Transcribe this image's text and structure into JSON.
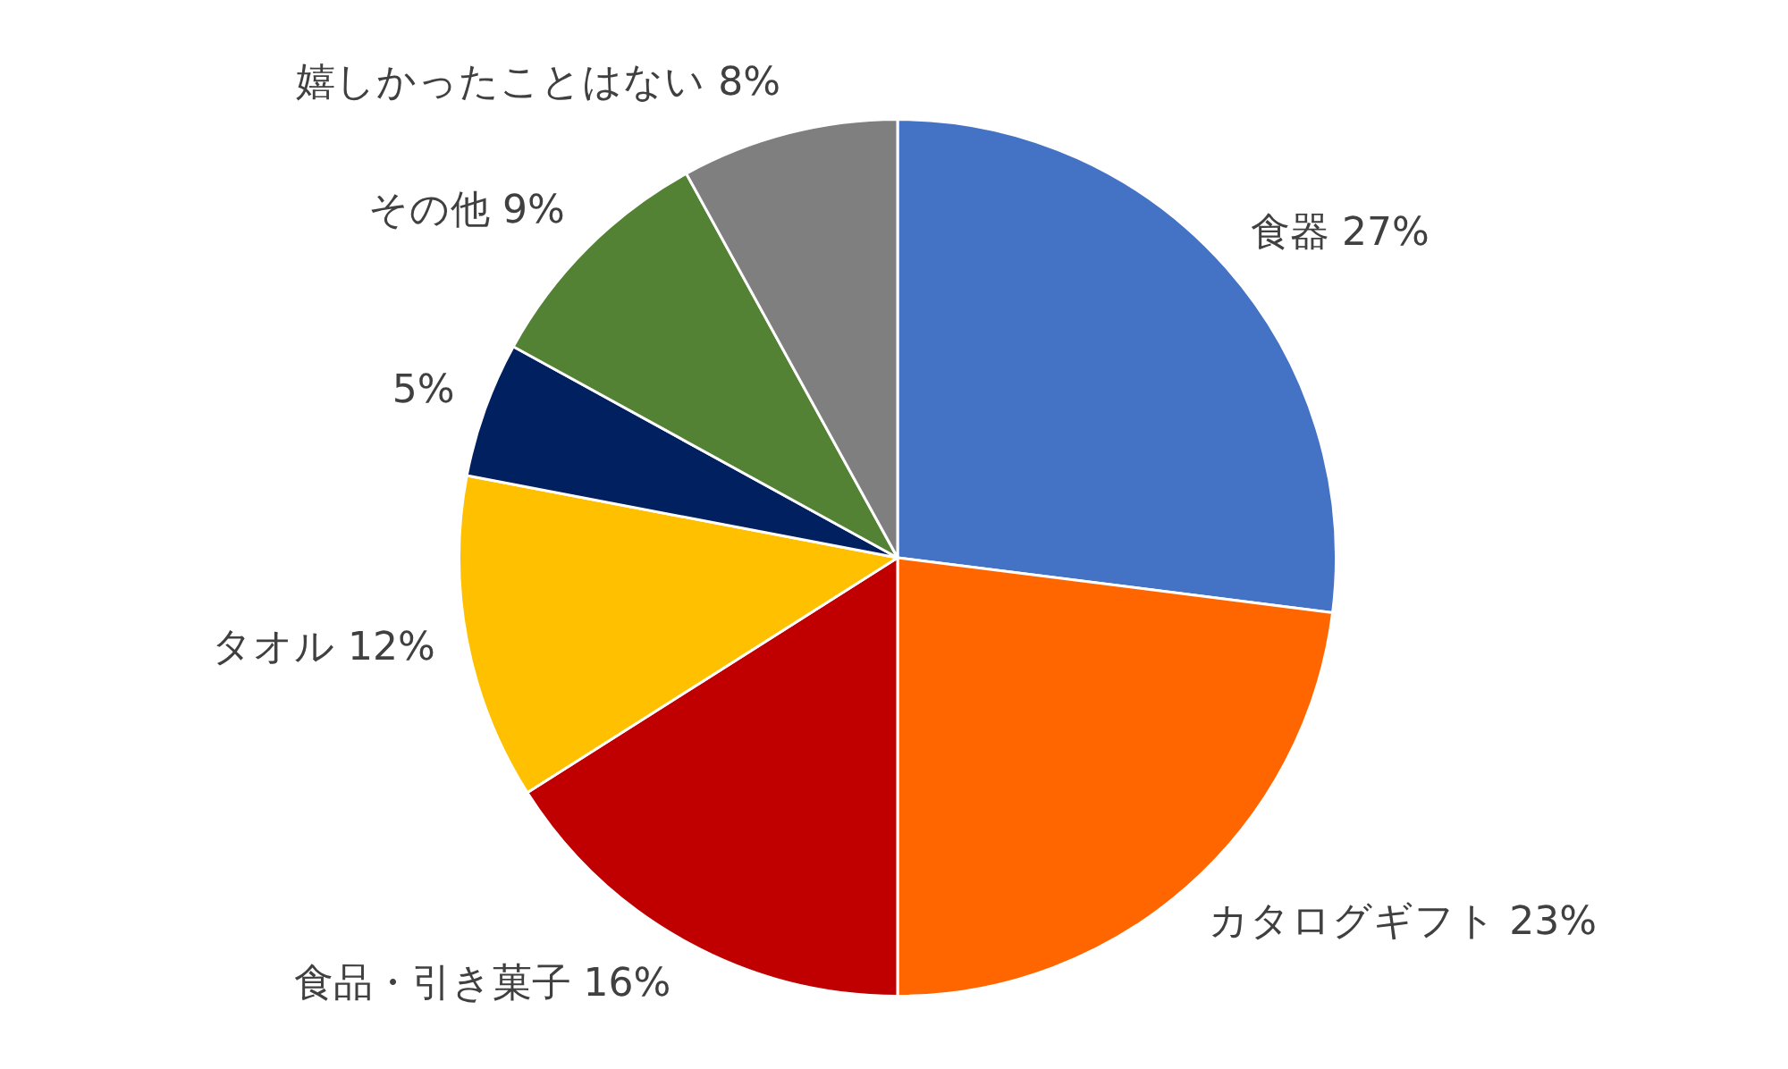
{
  "chart_data": {
    "type": "pie",
    "categories": [
      "食器",
      "カタログギフト",
      "食品・引き菓子",
      "タオル",
      null,
      "その他",
      "嬉しかったことはない"
    ],
    "values": [
      27,
      23,
      16,
      12,
      5,
      9,
      8
    ],
    "value_labels": [
      "27%",
      "23%",
      "16%",
      "12%",
      "5%",
      "9%",
      "8%"
    ],
    "colors": [
      "#4472c4",
      "#ff6600",
      "#c00000",
      "#ffc000",
      "#002060",
      "#548235",
      "#7f7f7f"
    ],
    "legend": false
  }
}
